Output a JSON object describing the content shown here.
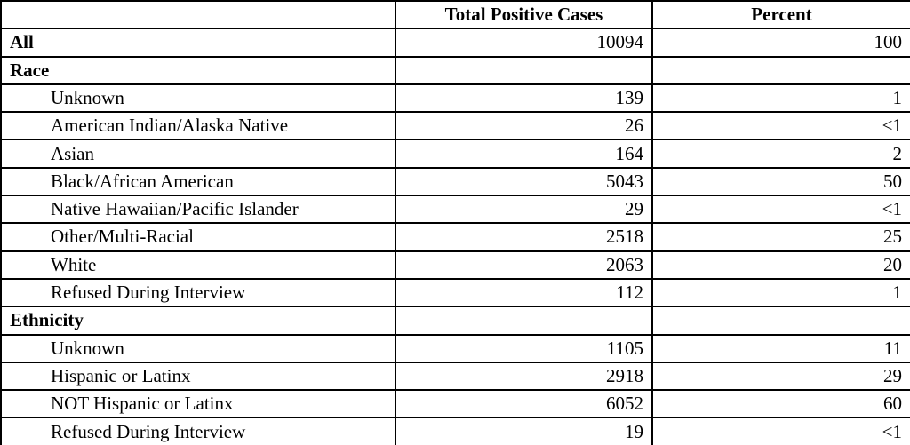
{
  "table": {
    "title_semantic": "Total Positive Cases by Race and Ethnicity",
    "columns": [
      "",
      "Total Positive Cases",
      "Percent"
    ],
    "rows": [
      {
        "label": "All",
        "bold": true,
        "indent": false,
        "cases": "10094",
        "percent": "100"
      },
      {
        "label": "Race",
        "bold": true,
        "indent": false,
        "cases": "",
        "percent": ""
      },
      {
        "label": "Unknown",
        "bold": false,
        "indent": true,
        "cases": "139",
        "percent": "1"
      },
      {
        "label": "American Indian/Alaska Native",
        "bold": false,
        "indent": true,
        "cases": "26",
        "percent": "<1"
      },
      {
        "label": "Asian",
        "bold": false,
        "indent": true,
        "cases": "164",
        "percent": "2"
      },
      {
        "label": "Black/African American",
        "bold": false,
        "indent": true,
        "cases": "5043",
        "percent": "50"
      },
      {
        "label": "Native Hawaiian/Pacific Islander",
        "bold": false,
        "indent": true,
        "cases": "29",
        "percent": "<1"
      },
      {
        "label": "Other/Multi-Racial",
        "bold": false,
        "indent": true,
        "cases": "2518",
        "percent": "25"
      },
      {
        "label": "White",
        "bold": false,
        "indent": true,
        "cases": "2063",
        "percent": "20"
      },
      {
        "label": "Refused During Interview",
        "bold": false,
        "indent": true,
        "cases": "112",
        "percent": "1"
      },
      {
        "label": "Ethnicity",
        "bold": true,
        "indent": false,
        "cases": "",
        "percent": ""
      },
      {
        "label": "Unknown",
        "bold": false,
        "indent": true,
        "cases": "1105",
        "percent": "11"
      },
      {
        "label": "Hispanic or Latinx",
        "bold": false,
        "indent": true,
        "cases": "2918",
        "percent": "29"
      },
      {
        "label": "NOT Hispanic or Latinx",
        "bold": false,
        "indent": true,
        "cases": "6052",
        "percent": "60"
      },
      {
        "label": "Refused During Interview",
        "bold": false,
        "indent": true,
        "cases": "19",
        "percent": "<1"
      }
    ],
    "colors": {
      "border": "#000000",
      "text": "#000000",
      "background": "#ffffff"
    }
  }
}
